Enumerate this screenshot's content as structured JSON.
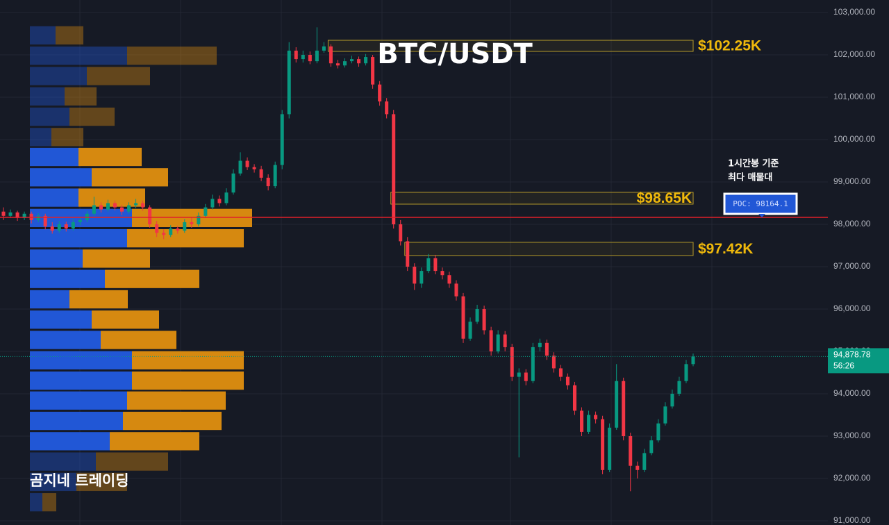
{
  "chart_data": {
    "type": "candlestick",
    "title": "BTC/USDT",
    "watermark": "곰지네 트레이딩",
    "up_color": "#089981",
    "down_color": "#f23645",
    "ylim": [
      90902,
      103295
    ],
    "yticks": [
      {
        "value": 103000,
        "label": "103,000.00"
      },
      {
        "value": 102000,
        "label": "102,000.00"
      },
      {
        "value": 101000,
        "label": "101,000.00"
      },
      {
        "value": 100000,
        "label": "100,000.00"
      },
      {
        "value": 99000,
        "label": "99,000.00"
      },
      {
        "value": 98000,
        "label": "98,000.00"
      },
      {
        "value": 97000,
        "label": "97,000.00"
      },
      {
        "value": 96000,
        "label": "96,000.00"
      },
      {
        "value": 95000,
        "label": "95,000.00"
      },
      {
        "value": 94000,
        "label": "94,000.00"
      },
      {
        "value": 93000,
        "label": "93,000.00"
      },
      {
        "value": 92000,
        "label": "92,000.00"
      },
      {
        "value": 91000,
        "label": "91,000.00"
      }
    ],
    "grid": true,
    "ohlc": [
      [
        98300,
        98400,
        98100,
        98200
      ],
      [
        98200,
        98350,
        98150,
        98280
      ],
      [
        98280,
        98320,
        98080,
        98150
      ],
      [
        98150,
        98300,
        98100,
        98250
      ],
      [
        98250,
        98300,
        98020,
        98100
      ],
      [
        98100,
        98260,
        98050,
        98200
      ],
      [
        98200,
        98250,
        97880,
        97950
      ],
      [
        97950,
        98050,
        97780,
        97850
      ],
      [
        97850,
        98080,
        97800,
        98000
      ],
      [
        98000,
        98060,
        97830,
        97900
      ],
      [
        97900,
        98120,
        97850,
        98050
      ],
      [
        98050,
        98180,
        97980,
        98100
      ],
      [
        98100,
        98320,
        98050,
        98250
      ],
      [
        98250,
        98650,
        98200,
        98450
      ],
      [
        98450,
        98520,
        98280,
        98350
      ],
      [
        98350,
        98580,
        98300,
        98500
      ],
      [
        98500,
        98560,
        98330,
        98400
      ],
      [
        98400,
        98460,
        98220,
        98300
      ],
      [
        98300,
        98520,
        98250,
        98450
      ],
      [
        98450,
        98600,
        98380,
        98500
      ],
      [
        98500,
        98560,
        98320,
        98400
      ],
      [
        98400,
        98450,
        97920,
        98000
      ],
      [
        98000,
        98080,
        97700,
        97800
      ],
      [
        97800,
        97880,
        97650,
        97750
      ],
      [
        97750,
        97980,
        97700,
        97900
      ],
      [
        97900,
        97960,
        97780,
        97850
      ],
      [
        97850,
        98120,
        97800,
        98050
      ],
      [
        98050,
        98150,
        97920,
        98000
      ],
      [
        98000,
        98280,
        97950,
        98200
      ],
      [
        98200,
        98480,
        98150,
        98400
      ],
      [
        98400,
        98700,
        98350,
        98600
      ],
      [
        98600,
        98680,
        98420,
        98500
      ],
      [
        98500,
        98850,
        98450,
        98750
      ],
      [
        98750,
        99300,
        98700,
        99200
      ],
      [
        99200,
        99700,
        99150,
        99500
      ],
      [
        99500,
        99580,
        99280,
        99350
      ],
      [
        99350,
        99420,
        99220,
        99300
      ],
      [
        99300,
        99380,
        99020,
        99100
      ],
      [
        99100,
        99180,
        98800,
        98900
      ],
      [
        98900,
        99480,
        98850,
        99400
      ],
      [
        99400,
        100700,
        99300,
        100600
      ],
      [
        100600,
        102300,
        100500,
        102100
      ],
      [
        102100,
        102180,
        101820,
        101900
      ],
      [
        101900,
        102100,
        101820,
        102000
      ],
      [
        102000,
        102080,
        101780,
        101850
      ],
      [
        101850,
        102650,
        101800,
        102100
      ],
      [
        102100,
        102300,
        102050,
        102200
      ],
      [
        102200,
        102250,
        101720,
        101800
      ],
      [
        101800,
        101880,
        101680,
        101750
      ],
      [
        101750,
        101920,
        101700,
        101850
      ],
      [
        101850,
        101980,
        101800,
        101900
      ],
      [
        101900,
        101960,
        101720,
        101800
      ],
      [
        101800,
        102020,
        101750,
        101950
      ],
      [
        101950,
        102000,
        101200,
        101300
      ],
      [
        101300,
        101380,
        100800,
        100900
      ],
      [
        100900,
        100980,
        100500,
        100600
      ],
      [
        100600,
        100700,
        97900,
        98000
      ],
      [
        98000,
        98100,
        97500,
        97600
      ],
      [
        97600,
        97700,
        96900,
        97000
      ],
      [
        97000,
        97080,
        96450,
        96600
      ],
      [
        96600,
        96980,
        96500,
        96900
      ],
      [
        96900,
        97300,
        96850,
        97200
      ],
      [
        97200,
        97280,
        96820,
        96900
      ],
      [
        96900,
        96980,
        96700,
        96800
      ],
      [
        96800,
        96880,
        96500,
        96600
      ],
      [
        96600,
        96680,
        96200,
        96300
      ],
      [
        96300,
        96380,
        95200,
        95300
      ],
      [
        95300,
        95800,
        95250,
        95700
      ],
      [
        95700,
        96100,
        95650,
        96000
      ],
      [
        96000,
        96080,
        95400,
        95500
      ],
      [
        95500,
        95580,
        94900,
        95000
      ],
      [
        95000,
        95500,
        94950,
        95400
      ],
      [
        95400,
        95480,
        95000,
        95100
      ],
      [
        95100,
        95180,
        94300,
        94400
      ],
      [
        94400,
        94600,
        92500,
        94500
      ],
      [
        94500,
        94580,
        94200,
        94300
      ],
      [
        94300,
        95200,
        94250,
        95100
      ],
      [
        95100,
        95300,
        95000,
        95200
      ],
      [
        95200,
        95280,
        94800,
        94900
      ],
      [
        94900,
        94980,
        94500,
        94600
      ],
      [
        94600,
        94680,
        94300,
        94400
      ],
      [
        94400,
        94480,
        94100,
        94200
      ],
      [
        94200,
        94280,
        93500,
        93600
      ],
      [
        93600,
        93680,
        93000,
        93100
      ],
      [
        93100,
        93600,
        93050,
        93500
      ],
      [
        93500,
        93580,
        93300,
        93400
      ],
      [
        93400,
        93480,
        92100,
        92200
      ],
      [
        92200,
        93300,
        92150,
        93200
      ],
      [
        93200,
        94700,
        93150,
        94300
      ],
      [
        94300,
        94380,
        92900,
        93000
      ],
      [
        93000,
        93080,
        91700,
        92300
      ],
      [
        92300,
        92400,
        92000,
        92200
      ],
      [
        92200,
        92700,
        92150,
        92600
      ],
      [
        92600,
        93000,
        92550,
        92900
      ],
      [
        92900,
        93400,
        92850,
        93300
      ],
      [
        93300,
        93800,
        93250,
        93700
      ],
      [
        93700,
        94100,
        93650,
        94000
      ],
      [
        94000,
        94400,
        93950,
        94300
      ],
      [
        94300,
        94800,
        94250,
        94700
      ],
      [
        94700,
        94950,
        94650,
        94878.78
      ]
    ],
    "volume_profile": {
      "buy_color": "#2157d6",
      "sell_color": "#d68910",
      "value_area": [
        92640,
        99830
      ],
      "levels": [
        102460,
        101980,
        101500,
        101020,
        100540,
        100060,
        99590,
        99110,
        98630,
        98150,
        97670,
        97190,
        96710,
        96230,
        95750,
        95270,
        94790,
        94310,
        93840,
        93360,
        92880,
        92400,
        91920,
        91440
      ],
      "buy": [
        37,
        140,
        82,
        50,
        57,
        31,
        70,
        89,
        70,
        147,
        140,
        76,
        108,
        57,
        89,
        102,
        147,
        147,
        140,
        134,
        115,
        95,
        67,
        18
      ],
      "sell": [
        40,
        129,
        91,
        46,
        65,
        46,
        91,
        110,
        96,
        173,
        168,
        97,
        136,
        84,
        97,
        109,
        161,
        161,
        142,
        142,
        129,
        104,
        73,
        20
      ]
    },
    "zones": [
      {
        "label": "$102.25K",
        "low": 102082,
        "high": 102344,
        "from": 47
      },
      {
        "label": "$98.65K",
        "low": 98476,
        "high": 98755,
        "from": 56
      },
      {
        "label": "$97.42K",
        "low": 97263,
        "high": 97575,
        "from": 58
      }
    ],
    "poc": {
      "value": 98164.1,
      "label": "POC: 98164.1",
      "note": [
        "1시간봉 기준",
        "최다 매물대"
      ]
    },
    "last_price": {
      "value": 94878.78,
      "label": "94,878.78",
      "countdown": "56:26"
    }
  }
}
